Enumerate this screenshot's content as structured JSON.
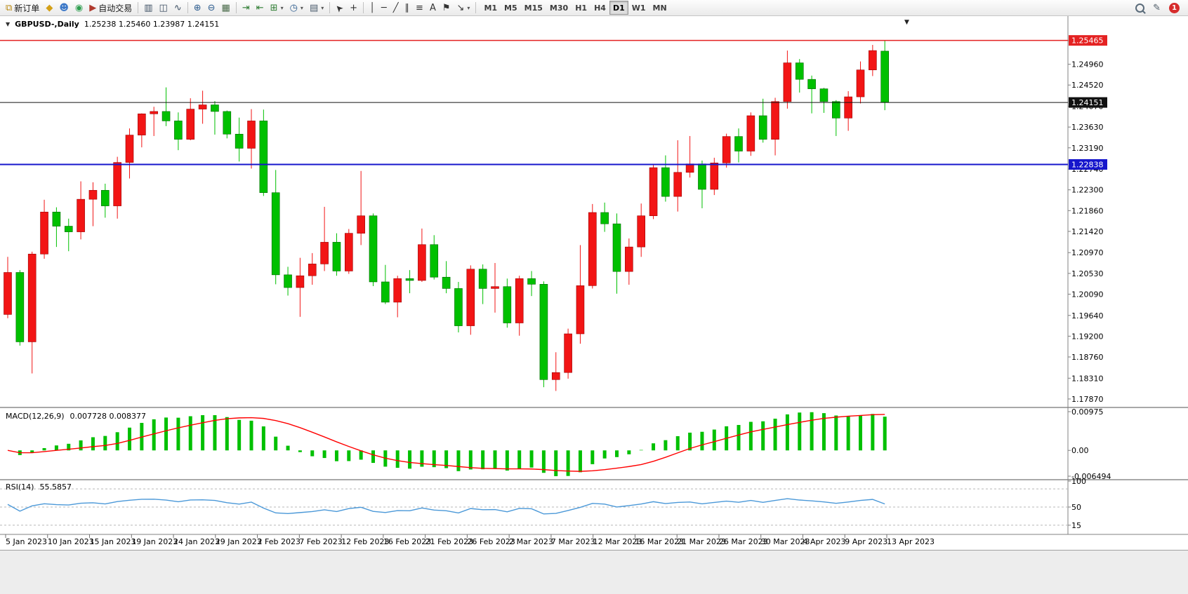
{
  "toolbar": {
    "items": [
      {
        "t": "btn",
        "name": "new-order-button",
        "icon": "order-ticket-icon",
        "glyph": "⧉",
        "fg": "#b8860b",
        "label": "新订单"
      },
      {
        "t": "ico",
        "name": "market-icon",
        "glyph": "◆",
        "fg": "#d4a017"
      },
      {
        "t": "ico",
        "name": "profile-icon",
        "glyph": "☻",
        "fg": "#3c78c8"
      },
      {
        "t": "ico",
        "name": "community-icon",
        "glyph": "◉",
        "fg": "#2e9e4f"
      },
      {
        "t": "btn",
        "name": "auto-trading-button",
        "icon": "autotrading-icon",
        "glyph": "▶",
        "fg": "#b03a2e",
        "label": "自动交易"
      },
      {
        "t": "sep"
      },
      {
        "t": "ico",
        "name": "bar-chart-icon",
        "glyph": "▥",
        "fg": "#3d4f63"
      },
      {
        "t": "ico",
        "name": "candlestick-chart-icon",
        "glyph": "◫",
        "fg": "#3d4f63"
      },
      {
        "t": "ico",
        "name": "line-chart-icon",
        "glyph": "∿",
        "fg": "#3d4f63"
      },
      {
        "t": "sep"
      },
      {
        "t": "ico",
        "name": "zoom-in-icon",
        "glyph": "⊕",
        "fg": "#2d5d8f"
      },
      {
        "t": "ico",
        "name": "zoom-out-icon",
        "glyph": "⊖",
        "fg": "#2d5d8f"
      },
      {
        "t": "ico",
        "name": "tile-windows-icon",
        "glyph": "▦",
        "fg": "#4a6b4a"
      },
      {
        "t": "sep"
      },
      {
        "t": "ico",
        "name": "auto-scroll-icon",
        "glyph": "⇥",
        "fg": "#2e7d32"
      },
      {
        "t": "ico",
        "name": "chart-shift-icon",
        "glyph": "⇤",
        "fg": "#2e7d32"
      },
      {
        "t": "ico",
        "name": "indicators-icon",
        "glyph": "⊞",
        "fg": "#2e7d32",
        "caret": true
      },
      {
        "t": "ico",
        "name": "periods-icon",
        "glyph": "◷",
        "fg": "#2d5d8f",
        "caret": true
      },
      {
        "t": "ico",
        "name": "templates-icon",
        "glyph": "▤",
        "fg": "#4a5b6c",
        "caret": true
      },
      {
        "t": "sep"
      },
      {
        "t": "ico",
        "name": "cursor-icon",
        "glyph": "➤",
        "fg": "#333333",
        "rot": -135
      },
      {
        "t": "ico",
        "name": "crosshair-icon",
        "glyph": "+",
        "fg": "#333333"
      },
      {
        "t": "sep"
      },
      {
        "t": "ico",
        "name": "vertical-line-icon",
        "glyph": "│",
        "fg": "#333333"
      },
      {
        "t": "ico",
        "name": "horizontal-line-icon",
        "glyph": "─",
        "fg": "#333333"
      },
      {
        "t": "ico",
        "name": "trendline-icon",
        "glyph": "╱",
        "fg": "#333333"
      },
      {
        "t": "ico",
        "name": "equidistant-channel-icon",
        "glyph": "∥",
        "fg": "#333333"
      },
      {
        "t": "ico",
        "name": "fibonacci-icon",
        "glyph": "≡",
        "fg": "#333333"
      },
      {
        "t": "ico",
        "name": "text-icon",
        "glyph": "A",
        "fg": "#333333"
      },
      {
        "t": "ico",
        "name": "arrow-label-icon",
        "glyph": "⚑",
        "fg": "#333333"
      },
      {
        "t": "ico",
        "name": "shapes-icon",
        "glyph": "↘",
        "fg": "#333333",
        "caret": true
      },
      {
        "t": "sep"
      },
      {
        "t": "tf"
      }
    ],
    "timeframes": [
      "M1",
      "M5",
      "M15",
      "M30",
      "H1",
      "H4",
      "D1",
      "W1",
      "MN"
    ],
    "active_timeframe": "D1",
    "right": [
      {
        "t": "mag",
        "name": "search-icon"
      },
      {
        "t": "ico",
        "name": "edit-icon",
        "glyph": "✎",
        "fg": "#4c5a66"
      },
      {
        "t": "badge",
        "name": "notification-badge",
        "label": "1"
      }
    ]
  },
  "chart_data": {
    "type": "candlestick",
    "symbol_label": "GBPUSD-,Daily",
    "ohlc_label": "1.25238 1.25460 1.23987 1.24151",
    "colors": {
      "bull": "#f21515",
      "bull_edge": "#9c0000",
      "bear": "#00c000",
      "bear_edge": "#006800",
      "macd_hist": "#00c000",
      "macd_signal": "#ff0000",
      "rsi_line": "#4a98d8",
      "hline_red": "#e42222",
      "hline_black": "#111111",
      "hline_blue": "#1616cc"
    },
    "price_axis": [
      "1.25460",
      "1.24960",
      "1.24520",
      "1.24070",
      "1.23630",
      "1.23190",
      "1.22740",
      "1.22300",
      "1.21860",
      "1.21420",
      "1.20970",
      "1.20530",
      "1.20090",
      "1.19640",
      "1.19200",
      "1.18760",
      "1.18310",
      "1.17870"
    ],
    "hlines": [
      {
        "value": 1.25465,
        "label": "1.25465",
        "color": "#e42222",
        "width": 1.4
      },
      {
        "value": 1.24151,
        "label": "1.24151",
        "color": "#111111",
        "width": 1
      },
      {
        "value": 1.22838,
        "label": "1.22838",
        "color": "#1616cc",
        "width": 2
      }
    ],
    "x_labels": [
      "5 Jan 2023",
      "10 Jan 2023",
      "15 Jan 2023",
      "19 Jan 2023",
      "24 Jan 2023",
      "29 Jan 2023",
      "2 Feb 2023",
      "7 Feb 2023",
      "12 Feb 2023",
      "16 Feb 2023",
      "21 Feb 2023",
      "26 Feb 2023",
      "2 Mar 2023",
      "7 Mar 2023",
      "12 Mar 2023",
      "16 Mar 2023",
      "21 Mar 2023",
      "26 Mar 2023",
      "30 Mar 2023",
      "4 Apr 2023",
      "9 Apr 2023",
      "13 Apr 2023"
    ],
    "candles": [
      [
        1.1966,
        1.2088,
        1.1958,
        1.2055
      ],
      [
        1.2055,
        1.206,
        1.19,
        1.1908
      ],
      [
        1.1908,
        1.2099,
        1.1841,
        1.2094
      ],
      [
        1.2094,
        1.2209,
        1.2084,
        1.2183
      ],
      [
        1.2183,
        1.2193,
        1.2109,
        1.2153
      ],
      [
        1.2153,
        1.2169,
        1.21,
        1.2141
      ],
      [
        1.2141,
        1.2248,
        1.2125,
        1.221
      ],
      [
        1.221,
        1.2246,
        1.2153,
        1.2229
      ],
      [
        1.2229,
        1.2243,
        1.2171,
        1.2196
      ],
      [
        1.2196,
        1.23,
        1.2169,
        1.2288
      ],
      [
        1.2288,
        1.236,
        1.2254,
        1.2346
      ],
      [
        1.2346,
        1.2392,
        1.232,
        1.2391
      ],
      [
        1.2391,
        1.2406,
        1.2344,
        1.2396
      ],
      [
        1.2396,
        1.2447,
        1.2365,
        1.2376
      ],
      [
        1.2376,
        1.2394,
        1.2314,
        1.2337
      ],
      [
        1.2337,
        1.2424,
        1.2335,
        1.2401
      ],
      [
        1.2401,
        1.244,
        1.237,
        1.241
      ],
      [
        1.241,
        1.2418,
        1.2347,
        1.2396
      ],
      [
        1.2396,
        1.2398,
        1.2339,
        1.2348
      ],
      [
        1.2348,
        1.2383,
        1.229,
        1.2318
      ],
      [
        1.2318,
        1.2401,
        1.2275,
        1.2376
      ],
      [
        1.2376,
        1.24,
        1.2217,
        1.2224
      ],
      [
        1.2224,
        1.2272,
        1.203,
        1.205
      ],
      [
        1.205,
        1.2067,
        1.2006,
        1.2023
      ],
      [
        1.2023,
        1.2086,
        1.1961,
        1.2048
      ],
      [
        1.2048,
        1.2096,
        1.2029,
        1.2073
      ],
      [
        1.2073,
        1.2194,
        1.2058,
        1.2119
      ],
      [
        1.2119,
        1.2138,
        1.2048,
        1.2058
      ],
      [
        1.2058,
        1.2147,
        1.2052,
        1.2138
      ],
      [
        1.2138,
        1.227,
        1.2113,
        1.2175
      ],
      [
        1.2175,
        1.218,
        1.2026,
        1.2035
      ],
      [
        1.2035,
        1.2071,
        1.1988,
        1.1992
      ],
      [
        1.1992,
        1.2048,
        1.196,
        1.2042
      ],
      [
        1.2042,
        1.206,
        1.2011,
        1.2038
      ],
      [
        1.2038,
        1.2148,
        1.2035,
        1.2114
      ],
      [
        1.2114,
        1.2134,
        1.204,
        1.2045
      ],
      [
        1.2045,
        1.2079,
        1.2011,
        1.2021
      ],
      [
        1.2021,
        1.2035,
        1.1928,
        1.1942
      ],
      [
        1.1942,
        1.207,
        1.1923,
        1.2062
      ],
      [
        1.2062,
        1.2072,
        1.1988,
        1.2021
      ],
      [
        1.2021,
        1.2075,
        1.197,
        1.2025
      ],
      [
        1.2025,
        1.2042,
        1.1938,
        1.1948
      ],
      [
        1.1948,
        1.2048,
        1.1921,
        1.2042
      ],
      [
        1.2042,
        1.2058,
        1.2005,
        1.203
      ],
      [
        1.203,
        1.2036,
        1.1812,
        1.1828
      ],
      [
        1.1828,
        1.1886,
        1.1804,
        1.1843
      ],
      [
        1.1843,
        1.1936,
        1.183,
        1.1925
      ],
      [
        1.1925,
        1.2113,
        1.1904,
        1.2027
      ],
      [
        1.2027,
        1.22,
        1.2021,
        1.2182
      ],
      [
        1.2182,
        1.2203,
        1.2141,
        1.2158
      ],
      [
        1.2158,
        1.218,
        1.201,
        1.2057
      ],
      [
        1.2057,
        1.2127,
        1.2029,
        1.2109
      ],
      [
        1.2109,
        1.2201,
        1.2088,
        1.2175
      ],
      [
        1.2175,
        1.2284,
        1.2168,
        1.2277
      ],
      [
        1.2277,
        1.2303,
        1.2205,
        1.2216
      ],
      [
        1.2216,
        1.2335,
        1.2184,
        1.2267
      ],
      [
        1.2267,
        1.2344,
        1.2256,
        1.2285
      ],
      [
        1.2285,
        1.2292,
        1.2191,
        1.2231
      ],
      [
        1.2231,
        1.2298,
        1.2219,
        1.2287
      ],
      [
        1.2287,
        1.2349,
        1.2277,
        1.2343
      ],
      [
        1.2343,
        1.236,
        1.2288,
        1.2312
      ],
      [
        1.2312,
        1.2394,
        1.2302,
        1.2387
      ],
      [
        1.2387,
        1.2423,
        1.233,
        1.2337
      ],
      [
        1.2337,
        1.2425,
        1.2303,
        1.2417
      ],
      [
        1.2417,
        1.2525,
        1.2402,
        1.2499
      ],
      [
        1.2499,
        1.2507,
        1.2436,
        1.2464
      ],
      [
        1.2464,
        1.2472,
        1.2392,
        1.2444
      ],
      [
        1.2444,
        1.2446,
        1.2393,
        1.2417
      ],
      [
        1.2417,
        1.242,
        1.2344,
        1.2382
      ],
      [
        1.2382,
        1.2439,
        1.2355,
        1.2427
      ],
      [
        1.2427,
        1.2502,
        1.2413,
        1.2484
      ],
      [
        1.2484,
        1.2537,
        1.2471,
        1.2525
      ],
      [
        1.25238,
        1.2546,
        1.23987,
        1.24151
      ]
    ],
    "macd": {
      "name": "MACD(12,26,9)",
      "values": "0.007728 0.008377",
      "fast": 12,
      "slow": 26,
      "signal": 9,
      "axis": [
        "0.00975",
        "0.00",
        "-0.006494"
      ]
    },
    "rsi": {
      "name": "RSI(14)",
      "value": "55.5857",
      "period": 14,
      "axis": [
        "100",
        "50",
        "15"
      ],
      "levels": [
        85,
        50,
        15
      ]
    }
  }
}
